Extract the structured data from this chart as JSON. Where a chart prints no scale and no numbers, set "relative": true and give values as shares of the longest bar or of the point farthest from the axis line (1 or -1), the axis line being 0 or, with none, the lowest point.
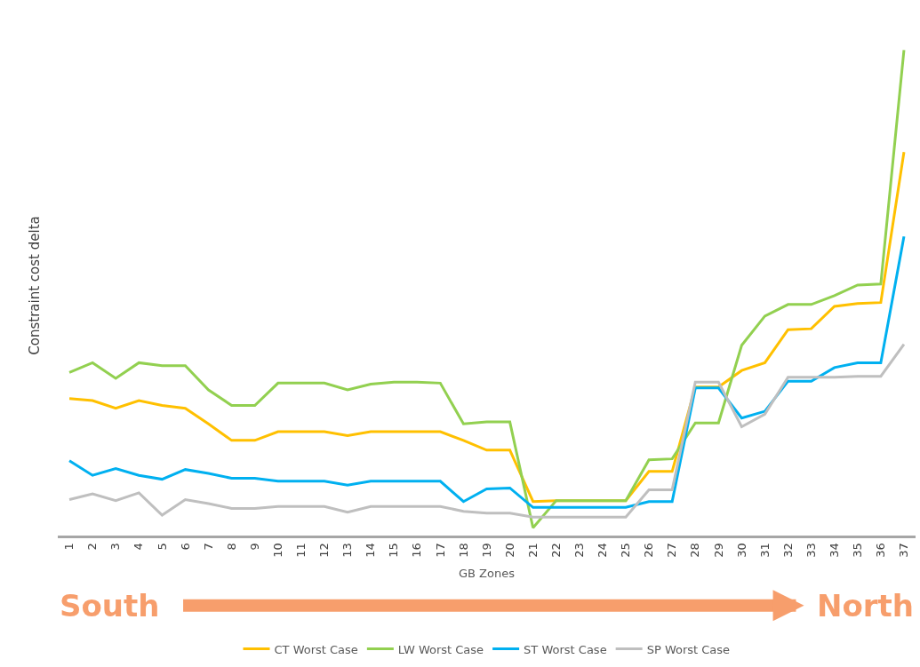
{
  "chart_data": {
    "type": "line",
    "relative": true,
    "xlabel": "GB Zones",
    "ylabel": "Constraint cost delta",
    "legend": "bottom",
    "marker": "none",
    "line_style": "solid",
    "categories": [
      "1",
      "2",
      "3",
      "4",
      "5",
      "6",
      "7",
      "8",
      "9",
      "10",
      "11",
      "12",
      "13",
      "14",
      "15",
      "16",
      "17",
      "18",
      "19",
      "20",
      "21",
      "22",
      "23",
      "24",
      "25",
      "26",
      "27",
      "28",
      "29",
      "30",
      "31",
      "32",
      "33",
      "34",
      "35",
      "36",
      "37"
    ],
    "annotations": [
      "South",
      "North"
    ],
    "series": [
      {
        "name": "CT Worst Case",
        "color": "#ffc000",
        "values": [
          0.282,
          0.278,
          0.262,
          0.278,
          0.268,
          0.262,
          0.23,
          0.196,
          0.196,
          0.214,
          0.214,
          0.214,
          0.206,
          0.214,
          0.214,
          0.214,
          0.214,
          0.196,
          0.176,
          0.176,
          0.07,
          0.072,
          0.072,
          0.072,
          0.072,
          0.132,
          0.132,
          0.306,
          0.306,
          0.34,
          0.356,
          0.424,
          0.426,
          0.472,
          0.478,
          0.48,
          0.79
        ]
      },
      {
        "name": "LW Worst Case",
        "color": "#92d050",
        "values": [
          0.336,
          0.356,
          0.324,
          0.356,
          0.35,
          0.35,
          0.3,
          0.268,
          0.268,
          0.314,
          0.314,
          0.314,
          0.3,
          0.312,
          0.316,
          0.316,
          0.314,
          0.23,
          0.234,
          0.234,
          0.016,
          0.072,
          0.072,
          0.072,
          0.072,
          0.156,
          0.158,
          0.232,
          0.232,
          0.392,
          0.452,
          0.476,
          0.476,
          0.494,
          0.516,
          0.518,
          1.0
        ]
      },
      {
        "name": "ST Worst Case",
        "color": "#00b0f0",
        "values": [
          0.154,
          0.124,
          0.138,
          0.124,
          0.116,
          0.136,
          0.128,
          0.118,
          0.118,
          0.112,
          0.112,
          0.112,
          0.104,
          0.112,
          0.112,
          0.112,
          0.112,
          0.07,
          0.096,
          0.098,
          0.058,
          0.058,
          0.058,
          0.058,
          0.058,
          0.07,
          0.07,
          0.304,
          0.304,
          0.242,
          0.256,
          0.318,
          0.318,
          0.346,
          0.356,
          0.356,
          0.616
        ]
      },
      {
        "name": "SP Worst Case",
        "color": "#bfbfbf",
        "values": [
          0.074,
          0.086,
          0.072,
          0.088,
          0.042,
          0.074,
          0.066,
          0.056,
          0.056,
          0.06,
          0.06,
          0.06,
          0.048,
          0.06,
          0.06,
          0.06,
          0.06,
          0.05,
          0.046,
          0.046,
          0.038,
          0.038,
          0.038,
          0.038,
          0.038,
          0.094,
          0.094,
          0.316,
          0.316,
          0.224,
          0.25,
          0.326,
          0.326,
          0.326,
          0.328,
          0.328,
          0.394
        ]
      }
    ]
  }
}
